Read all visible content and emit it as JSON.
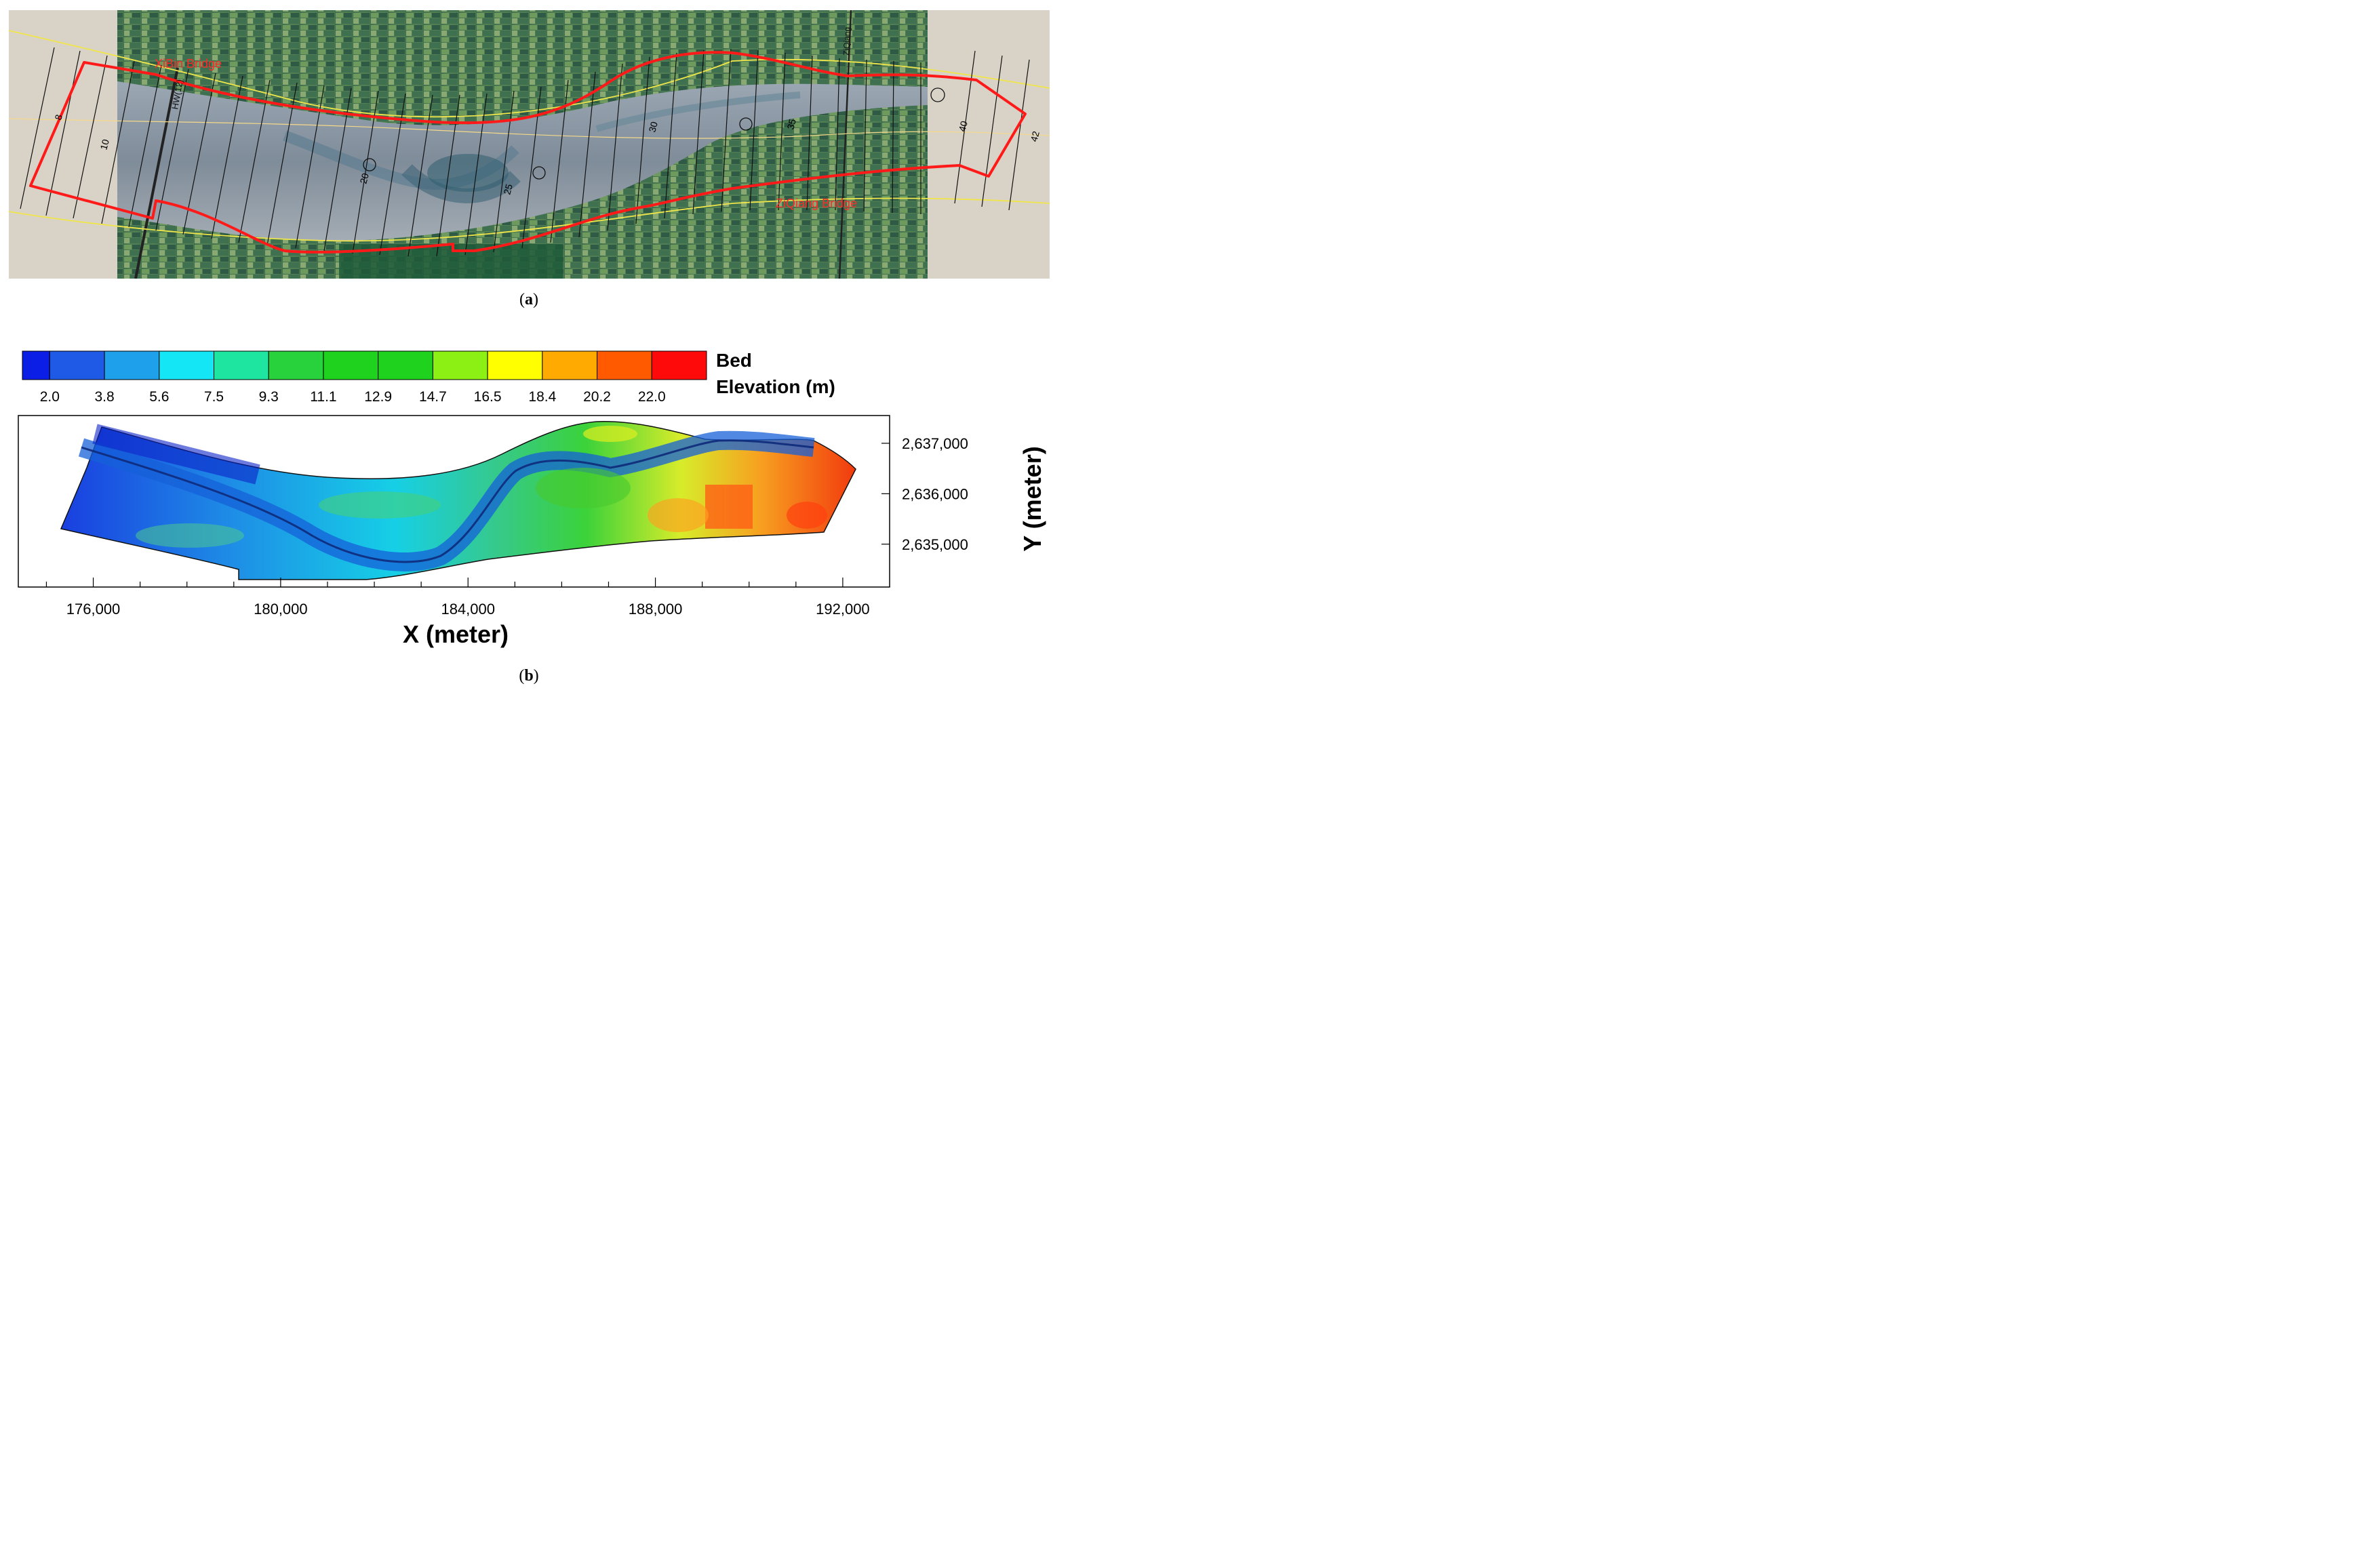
{
  "panel_a": {
    "caption_open": "(",
    "caption_letter": "a",
    "caption_close": ")",
    "labels": {
      "xibin_bridge": "XiBin Bridge",
      "ziqiang_bridge": "ZiQiang Bridge",
      "highway": "HW(12)",
      "ziqiang_road": "ZiQiang"
    },
    "cross_sections": [
      {
        "label": "8"
      },
      {
        "label": "10"
      },
      {
        "label": "20"
      },
      {
        "label": "25"
      },
      {
        "label": "30"
      },
      {
        "label": "35"
      },
      {
        "label": "40"
      },
      {
        "label": "42"
      }
    ],
    "colors": {
      "boundary": "#ff1a1a",
      "levee": "#f0e64a",
      "section_line": "#111111"
    }
  },
  "panel_b": {
    "caption_open": "(",
    "caption_letter": "b",
    "caption_close": ")",
    "colorbar": {
      "title_line1": "Bed",
      "title_line2": "Elevation (m)",
      "ticks": [
        "2.0",
        "3.8",
        "5.6",
        "7.5",
        "9.3",
        "11.1",
        "12.9",
        "14.7",
        "16.5",
        "18.4",
        "20.2",
        "22.0"
      ],
      "colors": [
        "#0a1ee6",
        "#1e5ae6",
        "#1ea0ea",
        "#14e6f5",
        "#1ee6a0",
        "#28d23c",
        "#1ed21e",
        "#1ed21e",
        "#8cf014",
        "#ffff00",
        "#ffaa00",
        "#ff5a00",
        "#ff0a0a"
      ]
    },
    "chart_data": {
      "type": "heatmap",
      "xlabel": "X (meter)",
      "ylabel": "Y (meter)",
      "x_ticks": [
        {
          "value": 176000,
          "label": "176,000"
        },
        {
          "value": 180000,
          "label": "180,000"
        },
        {
          "value": 184000,
          "label": "184,000"
        },
        {
          "value": 188000,
          "label": "188,000"
        },
        {
          "value": 192000,
          "label": "192,000"
        }
      ],
      "y_ticks": [
        {
          "value": 2637000,
          "label": "2,637,000"
        },
        {
          "value": 2636000,
          "label": "2,636,000"
        },
        {
          "value": 2635000,
          "label": "2,635,000"
        }
      ],
      "xlim": [
        174400,
        193000
      ],
      "ylim": [
        2634150,
        2637550
      ],
      "color_scale": "Bed Elevation (m)",
      "color_range": [
        2.0,
        22.0
      ]
    }
  }
}
